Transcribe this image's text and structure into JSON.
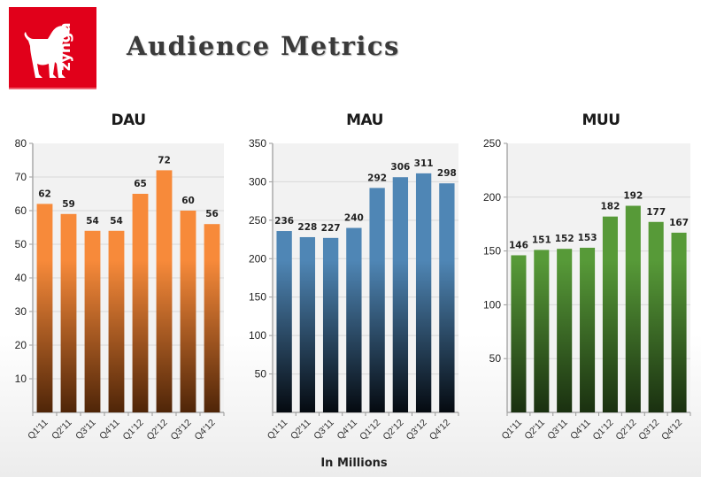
{
  "header": {
    "title": "Audience Metrics",
    "logo_text": "zynga",
    "logo_icon": "zynga-dog-logo",
    "brand_color": "#e1001a"
  },
  "footer": {
    "unit_label": "In Millions"
  },
  "chart_data": [
    {
      "type": "bar",
      "title": "DAU",
      "categories": [
        "Q1'11",
        "Q2'11",
        "Q3'11",
        "Q4'11",
        "Q1'12",
        "Q2'12",
        "Q3'12",
        "Q4'12"
      ],
      "values": [
        62,
        59,
        54,
        54,
        65,
        72,
        60,
        56
      ],
      "data_labels": [
        "62",
        "59",
        "54",
        "54",
        "65",
        "72",
        "60",
        "56"
      ],
      "yticks": [
        10,
        20,
        30,
        40,
        50,
        60,
        70,
        80
      ],
      "ylim": [
        0,
        80
      ],
      "xlabel": "",
      "ylabel": "",
      "grid": true,
      "color_top": "#f78a3a",
      "color_bottom": "#4f2508"
    },
    {
      "type": "bar",
      "title": "MAU",
      "categories": [
        "Q1'11",
        "Q2'11",
        "Q3'11",
        "Q4'11",
        "Q1'12",
        "Q2'12",
        "Q3'12",
        "Q4'12"
      ],
      "values": [
        236,
        228,
        227,
        240,
        292,
        306,
        311,
        298
      ],
      "data_labels": [
        "236",
        "228",
        "227",
        "240",
        "292",
        "306",
        "311",
        "298"
      ],
      "yticks": [
        50,
        100,
        150,
        200,
        250,
        300,
        350
      ],
      "ylim": [
        0,
        350
      ],
      "xlabel": "",
      "ylabel": "",
      "grid": true,
      "color_top": "#4f86b5",
      "color_bottom": "#050a10"
    },
    {
      "type": "bar",
      "title": "MUU",
      "categories": [
        "Q1'11",
        "Q2'11",
        "Q3'11",
        "Q4'11",
        "Q1'12",
        "Q2'12",
        "Q3'12",
        "Q4'12"
      ],
      "values": [
        146,
        151,
        152,
        153,
        182,
        192,
        177,
        167
      ],
      "data_labels": [
        "146",
        "151",
        "152",
        "153",
        "182",
        "192",
        "177",
        "167"
      ],
      "yticks": [
        50,
        100,
        150,
        200,
        250
      ],
      "ylim": [
        0,
        250
      ],
      "xlabel": "",
      "ylabel": "",
      "grid": true,
      "color_top": "#579a38",
      "color_bottom": "#1a3010"
    }
  ]
}
